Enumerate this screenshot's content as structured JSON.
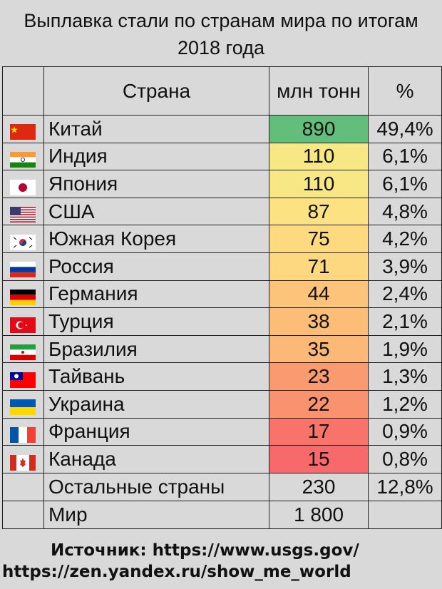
{
  "title": "Выплавка стали по странам мира по итогам 2018 года",
  "header": {
    "country": "Страна",
    "value": "млн тонн",
    "percent": "%"
  },
  "chart_data": {
    "type": "table",
    "columns": [
      "Страна",
      "млн тонн",
      "%"
    ],
    "rows": [
      {
        "country": "Китай",
        "value": "890",
        "percent": "49,4%",
        "flag": "china-flag-icon",
        "color": "#63be7b"
      },
      {
        "country": "Индия",
        "value": "110",
        "percent": "6,1%",
        "flag": "india-flag-icon",
        "color": "#f7e785"
      },
      {
        "country": "Япония",
        "value": "110",
        "percent": "6,1%",
        "flag": "japan-flag-icon",
        "color": "#f7e785"
      },
      {
        "country": "США",
        "value": "87",
        "percent": "4,8%",
        "flag": "usa-flag-icon",
        "color": "#fde283"
      },
      {
        "country": "Южная Корея",
        "value": "75",
        "percent": "4,2%",
        "flag": "south-korea-flag-icon",
        "color": "#fdda80"
      },
      {
        "country": "Россия",
        "value": "71",
        "percent": "3,9%",
        "flag": "russia-flag-icon",
        "color": "#fdd880"
      },
      {
        "country": "Германия",
        "value": "44",
        "percent": "2,4%",
        "flag": "germany-flag-icon",
        "color": "#fcc47a"
      },
      {
        "country": "Турция",
        "value": "38",
        "percent": "2,1%",
        "flag": "turkey-flag-icon",
        "color": "#fcbd78"
      },
      {
        "country": "Бразилия",
        "value": "35",
        "percent": "1,9%",
        "flag": "iran-flag-icon",
        "color": "#fcb877"
      },
      {
        "country": "Тайвань",
        "value": "23",
        "percent": "1,3%",
        "flag": "taiwan-flag-icon",
        "color": "#f99a70"
      },
      {
        "country": "Украина",
        "value": "22",
        "percent": "1,2%",
        "flag": "ukraine-flag-icon",
        "color": "#f9926e"
      },
      {
        "country": "Франция",
        "value": "17",
        "percent": "0,9%",
        "flag": "france-flag-icon",
        "color": "#f8746a"
      },
      {
        "country": "Канада",
        "value": "15",
        "percent": "0,8%",
        "flag": "canada-flag-icon",
        "color": "#f8696b"
      }
    ],
    "others": {
      "country": "Остальные страны",
      "value": "230",
      "percent": "12,8%"
    },
    "world": {
      "country": "Мир",
      "value": "1 800",
      "percent": ""
    }
  },
  "source": {
    "line1": "Источник: https://www.usgs.gov/",
    "line2": "https://zen.yandex.ru/show_me_world"
  }
}
